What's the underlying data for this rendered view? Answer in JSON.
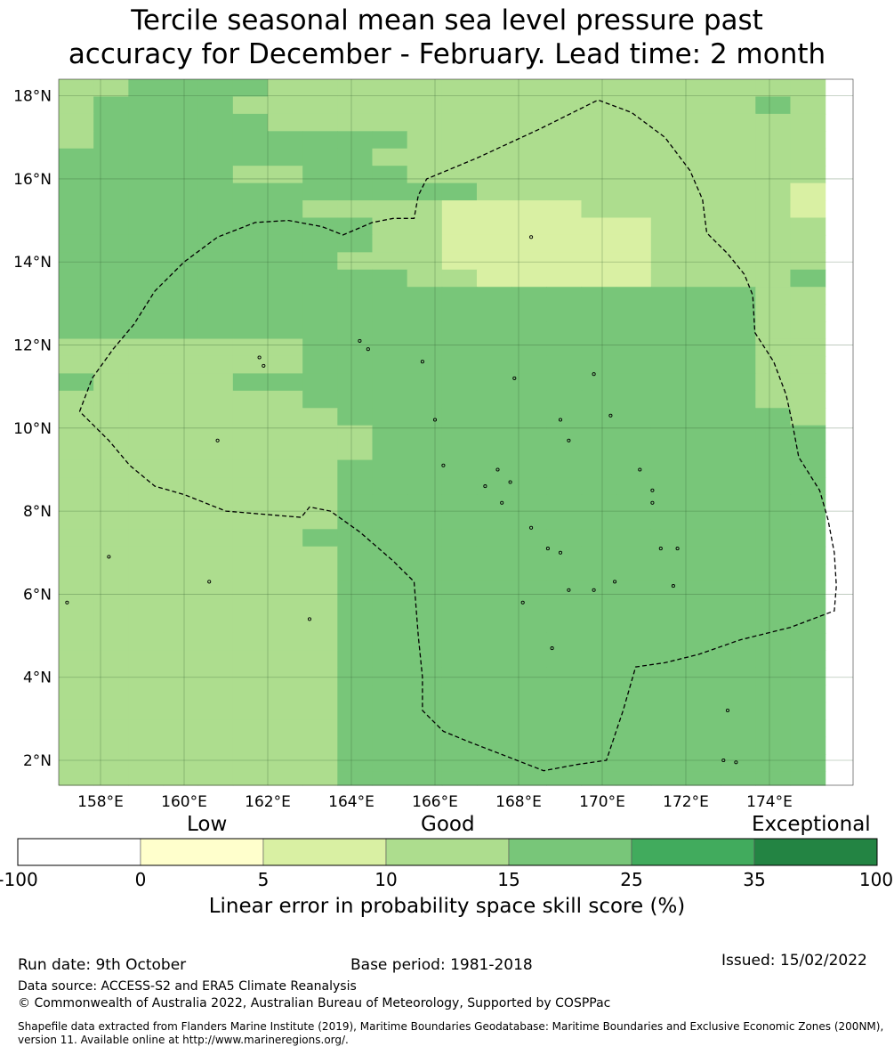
{
  "title_line1": "Tercile seasonal mean sea level pressure past",
  "title_line2": "accuracy for December - February. Lead time: 2 month",
  "map": {
    "lon_range": [
      157.0,
      176.0
    ],
    "lat_range": [
      1.4,
      18.4
    ],
    "grid_step_deg": 0.8333,
    "lon_ticks": [
      {
        "value": 158,
        "label": "158°E"
      },
      {
        "value": 160,
        "label": "160°E"
      },
      {
        "value": 162,
        "label": "162°E"
      },
      {
        "value": 164,
        "label": "164°E"
      },
      {
        "value": 166,
        "label": "166°E"
      },
      {
        "value": 168,
        "label": "168°E"
      },
      {
        "value": 170,
        "label": "170°E"
      },
      {
        "value": 172,
        "label": "172°E"
      },
      {
        "value": 174,
        "label": "174°E"
      }
    ],
    "lat_ticks": [
      {
        "value": 18,
        "label": "18°N"
      },
      {
        "value": 16,
        "label": "16°N"
      },
      {
        "value": 14,
        "label": "14°N"
      },
      {
        "value": 12,
        "label": "12°N"
      },
      {
        "value": 10,
        "label": "10°N"
      },
      {
        "value": 8,
        "label": "8°N"
      },
      {
        "value": 6,
        "label": "6°N"
      },
      {
        "value": 4,
        "label": "4°N"
      },
      {
        "value": 2,
        "label": "2°N"
      }
    ],
    "skill_grid_rows_north_to_south": [
      "3344443333333333333333",
      "3444433333333333333343",
      "3444443333333333333333",
      "3444444444333333333333",
      "4444444443333333333333",
      "4444433444333333333333",
      "4444444444443333333332",
      "4444444333322223333332",
      "4444444443322222233333",
      "4444444443322222233333",
      "4444444433322222233333",
      "4444444444332222233334",
      "4444444444444444444433",
      "4444444444444444444433",
      "4444444444444444444433",
      "3333333444444444444433",
      "3333333444444444444433",
      "4333344444444444444433",
      "3333333444444444444433",
      "3333333344444444444443",
      "3333333334444444444444",
      "3333333334444444444444",
      "3333333344444444444444",
      "3333333344444444444444",
      "3333333344444444444444",
      "3333333344444444444444",
      "3333333444444444444444",
      "3333333344444444444444",
      "3333333344444444444444",
      "3333333344444444444444",
      "3333333344444444444444",
      "3333333344444444444444",
      "3333333344444444444444",
      "3333333344444444444444",
      "3333333344444444444444",
      "3333333344444444444444",
      "3333333344444444444444",
      "3333333344444444444444",
      "3333333344444444444444",
      "3333333344444444444444",
      "3333333344444444444444",
      "3333333344444444444444"
    ],
    "boundary_lonlat": [
      [
        157.5,
        10.4
      ],
      [
        157.8,
        11.2
      ],
      [
        158.3,
        11.9
      ],
      [
        158.8,
        12.5
      ],
      [
        159.3,
        13.3
      ],
      [
        160.0,
        14.0
      ],
      [
        160.8,
        14.6
      ],
      [
        161.7,
        14.95
      ],
      [
        162.5,
        15.0
      ],
      [
        163.3,
        14.85
      ],
      [
        163.8,
        14.65
      ],
      [
        164.5,
        14.95
      ],
      [
        165.0,
        15.05
      ],
      [
        165.5,
        15.05
      ],
      [
        165.6,
        15.6
      ],
      [
        165.8,
        16.0
      ],
      [
        167.0,
        16.5
      ],
      [
        168.5,
        17.2
      ],
      [
        169.9,
        17.9
      ],
      [
        170.7,
        17.6
      ],
      [
        171.5,
        17.0
      ],
      [
        172.1,
        16.2
      ],
      [
        172.4,
        15.5
      ],
      [
        172.5,
        14.7
      ],
      [
        173.0,
        14.2
      ],
      [
        173.4,
        13.7
      ],
      [
        173.6,
        13.2
      ],
      [
        173.65,
        12.3
      ],
      [
        174.1,
        11.6
      ],
      [
        174.4,
        10.8
      ],
      [
        174.55,
        10.1
      ],
      [
        174.7,
        9.3
      ],
      [
        175.2,
        8.5
      ],
      [
        175.4,
        7.8
      ],
      [
        175.55,
        7.0
      ],
      [
        175.6,
        6.2
      ],
      [
        175.55,
        5.6
      ],
      [
        174.5,
        5.2
      ],
      [
        173.3,
        4.9
      ],
      [
        172.3,
        4.55
      ],
      [
        171.5,
        4.35
      ],
      [
        170.8,
        4.25
      ],
      [
        170.5,
        3.2
      ],
      [
        170.1,
        2.0
      ],
      [
        169.4,
        1.9
      ],
      [
        168.6,
        1.75
      ],
      [
        167.7,
        2.1
      ],
      [
        166.8,
        2.45
      ],
      [
        166.2,
        2.7
      ],
      [
        165.9,
        3.0
      ],
      [
        165.7,
        3.2
      ],
      [
        165.7,
        4.0
      ],
      [
        165.6,
        5.0
      ],
      [
        165.5,
        6.3
      ],
      [
        165.0,
        6.8
      ],
      [
        164.2,
        7.5
      ],
      [
        163.5,
        8.0
      ],
      [
        163.0,
        8.1
      ],
      [
        162.8,
        7.85
      ],
      [
        162.2,
        7.9
      ],
      [
        161.0,
        8.0
      ],
      [
        160.0,
        8.4
      ],
      [
        159.3,
        8.6
      ],
      [
        158.7,
        9.1
      ],
      [
        158.2,
        9.7
      ],
      [
        157.5,
        10.4
      ]
    ],
    "islands_lonlat": [
      [
        158.2,
        6.9
      ],
      [
        160.6,
        6.3
      ],
      [
        163.0,
        5.4
      ],
      [
        164.2,
        12.1
      ],
      [
        165.7,
        11.6
      ],
      [
        164.4,
        11.9
      ],
      [
        167.9,
        11.2
      ],
      [
        169.8,
        11.3
      ],
      [
        166.0,
        10.2
      ],
      [
        166.2,
        9.1
      ],
      [
        167.5,
        9.0
      ],
      [
        167.2,
        8.6
      ],
      [
        167.8,
        8.7
      ],
      [
        167.6,
        8.2
      ],
      [
        168.3,
        7.6
      ],
      [
        168.7,
        7.1
      ],
      [
        169.0,
        7.0
      ],
      [
        169.2,
        6.1
      ],
      [
        170.3,
        6.3
      ],
      [
        170.9,
        9.0
      ],
      [
        171.2,
        8.5
      ],
      [
        171.2,
        8.2
      ],
      [
        171.4,
        7.1
      ],
      [
        171.8,
        7.1
      ],
      [
        171.7,
        6.2
      ],
      [
        169.8,
        6.1
      ],
      [
        168.8,
        4.7
      ],
      [
        168.1,
        5.8
      ],
      [
        169.0,
        10.2
      ],
      [
        170.2,
        10.3
      ],
      [
        169.2,
        9.7
      ],
      [
        173.0,
        3.2
      ],
      [
        172.9,
        2.0
      ],
      [
        173.2,
        1.95
      ],
      [
        161.8,
        11.7
      ],
      [
        161.9,
        11.5
      ],
      [
        160.8,
        9.7
      ],
      [
        168.3,
        14.6
      ],
      [
        157.2,
        5.8
      ]
    ]
  },
  "legend": {
    "category_low": "Low",
    "category_good": "Good",
    "category_exceptional": "Exceptional",
    "bins": [
      {
        "from": -100,
        "to": 0,
        "color": "#ffffff"
      },
      {
        "from": 0,
        "to": 5,
        "color": "#ffffcc"
      },
      {
        "from": 5,
        "to": 10,
        "color": "#d9f0a3"
      },
      {
        "from": 10,
        "to": 15,
        "color": "#addd8e"
      },
      {
        "from": 15,
        "to": 25,
        "color": "#78c679"
      },
      {
        "from": 25,
        "to": 35,
        "color": "#41ab5d"
      },
      {
        "from": 35,
        "to": 100,
        "color": "#238443"
      }
    ],
    "tick_labels": [
      "-100",
      "0",
      "5",
      "10",
      "15",
      "25",
      "35",
      "100"
    ],
    "title": "Linear error in probability space skill score (%)"
  },
  "footer": {
    "run_date": "Run date: 9th October",
    "base_period": "Base period: 1981-2018",
    "issued": "Issued: 15/02/2022",
    "data_source": "Data source: ACCESS-S2 and ERA5 Climate Reanalysis",
    "copyright": "© Commonwealth of Australia 2022, Australian Bureau of Meteorology, Supported by COSPPac",
    "shapefile_line1": "Shapefile data extracted from Flanders Marine Institute (2019), Maritime Boundaries Geodatabase: Maritime Boundaries and Exclusive Economic Zones (200NM),",
    "shapefile_line2": "version 11. Available online at http://www.marineregions.org/."
  }
}
